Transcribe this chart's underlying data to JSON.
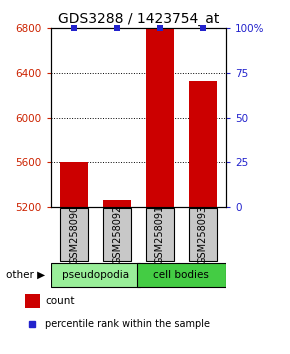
{
  "title": "GDS3288 / 1423754_at",
  "samples": [
    "GSM258090",
    "GSM258092",
    "GSM258091",
    "GSM258093"
  ],
  "groups": [
    "pseudopodia",
    "pseudopodia",
    "cell bodies",
    "cell bodies"
  ],
  "count_values": [
    5600,
    5260,
    6800,
    6330
  ],
  "percentile_values": [
    100,
    100,
    100,
    100
  ],
  "ylim_left": [
    5200,
    6800
  ],
  "ylim_right": [
    0,
    100
  ],
  "yticks_left": [
    5200,
    5600,
    6000,
    6400,
    6800
  ],
  "yticks_right": [
    0,
    25,
    50,
    75,
    100
  ],
  "ytick_labels_right": [
    "0",
    "25",
    "50",
    "75",
    "100%"
  ],
  "bar_color": "#cc0000",
  "dot_color": "#2222cc",
  "group_colors": {
    "pseudopodia": "#99ee99",
    "cell bodies": "#44cc44"
  },
  "left_tick_color": "#cc2200",
  "right_tick_color": "#2222cc",
  "title_fontsize": 10,
  "bar_width": 0.65,
  "x_positions": [
    0,
    1,
    2,
    3
  ],
  "xlim": [
    -0.55,
    3.55
  ],
  "grid_ticks": [
    5600,
    6000,
    6400
  ]
}
